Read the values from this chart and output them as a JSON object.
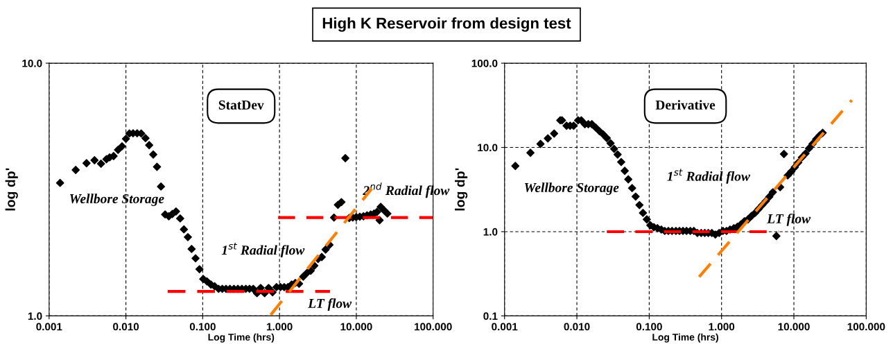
{
  "chart_data": [
    {
      "type": "scatter",
      "title": "High K Reservoir from design test",
      "subtitle": "StatDev",
      "xlabel": "Log Time (hrs)",
      "ylabel": "log dp'",
      "log": "xy",
      "grid": true,
      "legend": false,
      "xlim": [
        0.001,
        100
      ],
      "xticks": [
        {
          "value": 0.001,
          "label": "0.001"
        },
        {
          "value": 0.01,
          "label": "0.010"
        },
        {
          "value": 0.1,
          "label": "0.100"
        },
        {
          "value": 1,
          "label": "1.000"
        },
        {
          "value": 10,
          "label": "10.000"
        },
        {
          "value": 100,
          "label": "100.000"
        }
      ],
      "ylim": [
        1,
        10
      ],
      "yticks": [
        {
          "value": 1,
          "label": "1.0"
        },
        {
          "value": 10,
          "label": "10.0"
        }
      ],
      "series": [
        {
          "color": "#000000",
          "marker": "diamond",
          "x": [
            0.00139,
            0.00222,
            0.00307,
            0.0039,
            0.00474,
            0.00558,
            0.00614,
            0.00691,
            0.0079,
            0.0089,
            0.01,
            0.0111,
            0.0124,
            0.014,
            0.0158,
            0.018,
            0.0201,
            0.0227,
            0.0254,
            0.0286,
            0.0324,
            0.0362,
            0.0402,
            0.0449,
            0.0509,
            0.0569,
            0.0641,
            0.0717,
            0.0807,
            0.0908,
            0.1016,
            0.1135,
            0.128,
            0.143,
            0.161,
            0.18,
            0.201,
            0.226,
            0.255,
            0.287,
            0.324,
            0.364,
            0.407,
            0.455,
            0.509,
            0.568,
            0.64,
            0.721,
            0.812,
            0.914,
            1.029,
            1.151,
            1.285,
            1.438,
            1.606,
            1.797,
            2.04,
            2.28,
            2.55,
            2.84,
            3.18,
            3.55,
            3.98,
            4.47,
            5.12,
            5.76,
            6.4,
            7.2,
            8.1,
            8.99,
            9.98,
            11.1,
            12.4,
            13.8,
            15.4,
            17.0,
            18.6,
            20.1,
            20.8,
            22.9,
            25.4
          ],
          "values": [
            3.36,
            3.78,
            4.02,
            4.13,
            4.0,
            4.17,
            4.24,
            4.29,
            4.54,
            4.69,
            5.02,
            5.27,
            5.28,
            5.28,
            5.27,
            5.05,
            4.74,
            4.35,
            3.89,
            3.25,
            2.52,
            2.48,
            2.53,
            2.59,
            2.43,
            2.2,
            2.05,
            1.84,
            1.69,
            1.53,
            1.4,
            1.37,
            1.33,
            1.31,
            1.28,
            1.28,
            1.28,
            1.28,
            1.28,
            1.28,
            1.28,
            1.28,
            1.28,
            1.28,
            1.23,
            1.29,
            1.23,
            1.29,
            1.24,
            1.3,
            1.3,
            1.3,
            1.3,
            1.33,
            1.35,
            1.34,
            1.43,
            1.48,
            1.51,
            1.58,
            1.68,
            1.71,
            1.83,
            1.91,
            2.45,
            2.75,
            2.82,
            4.21,
            2.44,
            2.45,
            2.46,
            2.47,
            2.48,
            2.5,
            2.52,
            2.54,
            2.58,
            2.39,
            2.7,
            2.62,
            2.54
          ]
        },
        {
          "type": "line",
          "color": "#ff0000",
          "line_style": "dashed",
          "x": [
            0.035,
            4.54
          ],
          "values": [
            1.25,
            1.25
          ]
        },
        {
          "type": "line",
          "color": "#ff0000",
          "line_style": "dashed",
          "x": [
            0.96,
            100
          ],
          "values": [
            2.45,
            2.45
          ]
        },
        {
          "type": "line",
          "color": "#ff7f00",
          "line_style": "dashed",
          "x": [
            0.77,
            15.9
          ],
          "values": [
            1.01,
            3.19
          ]
        }
      ],
      "annotations": [
        "Wellbore Storage",
        "1$^{st}$ Radial flow",
        "2$^{nd}$ Radial flow",
        "LT flow"
      ]
    },
    {
      "type": "scatter",
      "subtitle": "Derivative",
      "xlabel": "Log Time (hrs)",
      "ylabel": "log dp'",
      "log": "xy",
      "grid": true,
      "legend": false,
      "xlim": [
        0.001,
        100
      ],
      "xticks": [
        {
          "value": 0.001,
          "label": "0.001"
        },
        {
          "value": 0.01,
          "label": "0.010"
        },
        {
          "value": 0.1,
          "label": "0.100"
        },
        {
          "value": 1,
          "label": "1.000"
        },
        {
          "value": 10,
          "label": "10.000"
        },
        {
          "value": 100,
          "label": "100.000"
        }
      ],
      "ylim": [
        0.1,
        100
      ],
      "yticks": [
        {
          "value": 0.1,
          "label": "0.1"
        },
        {
          "value": 1,
          "label": "1.0"
        },
        {
          "value": 10,
          "label": "10.0"
        },
        {
          "value": 100,
          "label": "100.0"
        }
      ],
      "series": [
        {
          "color": "#000000",
          "marker": "diamond",
          "x": [
            0.00141,
            0.00228,
            0.00314,
            0.00397,
            0.00485,
            0.00589,
            0.00623,
            0.0072,
            0.00806,
            0.00902,
            0.0104,
            0.0115,
            0.0129,
            0.0144,
            0.0161,
            0.0182,
            0.0205,
            0.0231,
            0.0259,
            0.0292,
            0.0327,
            0.0366,
            0.041,
            0.0459,
            0.0514,
            0.058,
            0.0649,
            0.0733,
            0.082,
            0.0926,
            0.1036,
            0.116,
            0.13,
            0.147,
            0.164,
            0.184,
            0.207,
            0.234,
            0.262,
            0.293,
            0.328,
            0.37,
            0.414,
            0.464,
            0.523,
            0.586,
            0.656,
            0.734,
            0.821,
            0.927,
            1.046,
            1.171,
            1.311,
            1.48,
            1.656,
            1.854,
            2.075,
            2.32,
            2.6,
            2.91,
            3.26,
            3.65,
            4.08,
            4.57,
            5.12,
            5.73,
            6.46,
            7.29,
            8.22,
            9.21,
            10.3,
            11.5,
            12.9,
            14.5,
            16.2,
            18.1,
            20.3,
            22.7,
            25.0
          ],
          "values": [
            6.03,
            8.64,
            11.0,
            12.8,
            14.6,
            21.0,
            21.0,
            18.1,
            18.1,
            18.1,
            21.0,
            21.0,
            18.9,
            18.9,
            18.9,
            17.2,
            15.6,
            14.3,
            12.9,
            11.2,
            9.61,
            8.23,
            6.71,
            5.28,
            4.18,
            3.29,
            2.61,
            2.07,
            1.67,
            1.4,
            1.19,
            1.13,
            1.1,
            1.06,
            1.02,
            1.02,
            1.02,
            1.02,
            1.02,
            1.02,
            1.02,
            1.02,
            1.02,
            0.965,
            0.965,
            0.965,
            0.965,
            0.965,
            0.925,
            0.965,
            1.02,
            1.02,
            1.06,
            1.1,
            1.14,
            1.22,
            1.33,
            1.4,
            1.54,
            1.67,
            1.86,
            2.07,
            2.3,
            2.59,
            2.94,
            0.887,
            3.38,
            8.35,
            4.65,
            5.17,
            5.82,
            6.61,
            7.61,
            8.46,
            9.74,
            11.0,
            12.5,
            13.9,
            14.9
          ]
        },
        {
          "type": "line",
          "color": "#ff0000",
          "line_style": "dashed",
          "x": [
            0.026,
            6.1
          ],
          "values": [
            1.0,
            1.0
          ]
        },
        {
          "type": "line",
          "color": "#ff7f00",
          "line_style": "dashed",
          "x": [
            0.491,
            63.2
          ],
          "values": [
            0.291,
            36.4
          ]
        }
      ],
      "annotations": [
        "Wellbore Storage",
        "1$^{st}$ Radial flow",
        "LT flow"
      ]
    }
  ]
}
